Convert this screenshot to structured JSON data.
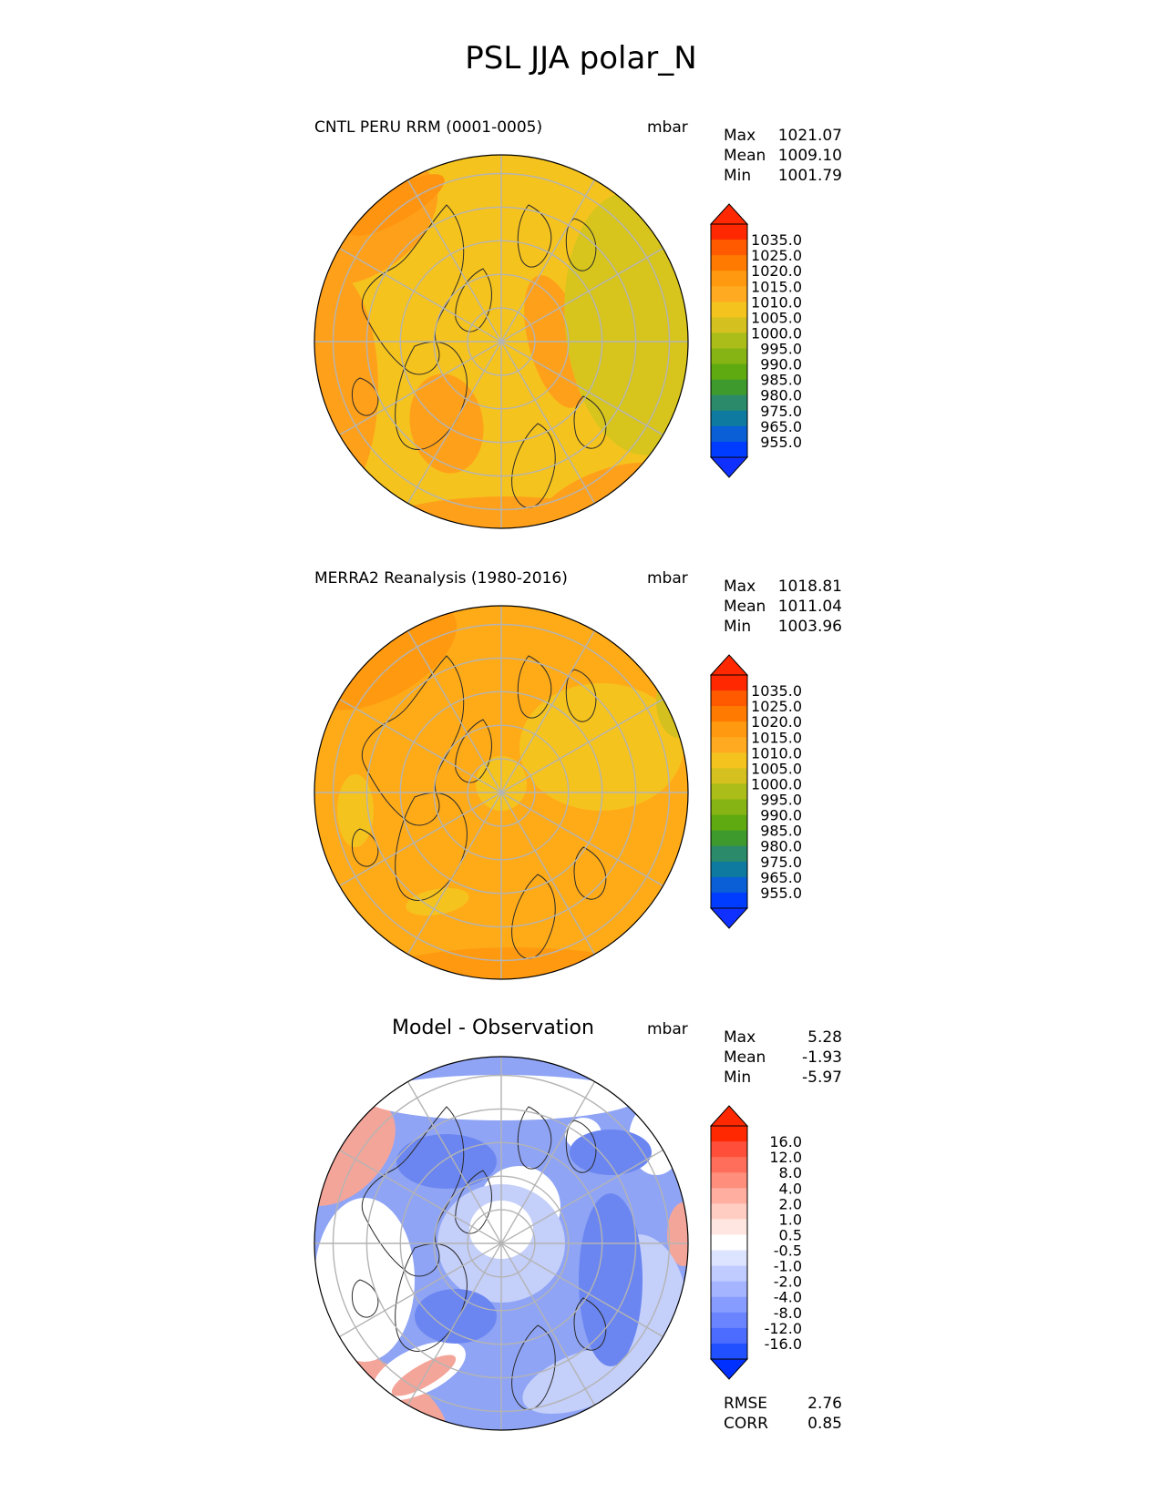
{
  "title": "PSL JJA polar_N",
  "panels": [
    {
      "id": "test",
      "title": "CNTL PERU RRM (0001-0005)",
      "units": "mbar",
      "stats": [
        {
          "label": "Max",
          "value": "1021.07"
        },
        {
          "label": "Mean",
          "value": "1009.10"
        },
        {
          "label": "Min",
          "value": "1001.79"
        }
      ],
      "colorbar": {
        "ticks": [
          "1035.0",
          "1025.0",
          "1020.0",
          "1015.0",
          "1010.0",
          "1005.0",
          "1000.0",
          "995.0",
          "990.0",
          "985.0",
          "980.0",
          "975.0",
          "965.0",
          "955.0"
        ],
        "colors": [
          "#ff2800",
          "#ff5a00",
          "#ff7a00",
          "#ff9a10",
          "#ffaa20",
          "#f5c31e",
          "#d4c01e",
          "#aabd18",
          "#86b414",
          "#5eaa10",
          "#3f9a2e",
          "#2a8a6a",
          "#0e7aa0",
          "#0a5fd6",
          "#003cff"
        ],
        "top_color": "#ff2800",
        "bottom_color": "#1030ff"
      },
      "map": {
        "base": "#f5c31e",
        "edge": "#ffa01a",
        "accent": "#d7c51e"
      }
    },
    {
      "id": "ref",
      "title": "MERRA2 Reanalysis (1980-2016)",
      "units": "mbar",
      "stats": [
        {
          "label": "Max",
          "value": "1018.81"
        },
        {
          "label": "Mean",
          "value": "1011.04"
        },
        {
          "label": "Min",
          "value": "1003.96"
        }
      ],
      "colorbar": {
        "ticks": [
          "1035.0",
          "1025.0",
          "1020.0",
          "1015.0",
          "1010.0",
          "1005.0",
          "1000.0",
          "995.0",
          "990.0",
          "985.0",
          "980.0",
          "975.0",
          "965.0",
          "955.0"
        ],
        "colors": [
          "#ff2800",
          "#ff5a00",
          "#ff7a00",
          "#ff9a10",
          "#ffaa20",
          "#f5c31e",
          "#d4c01e",
          "#aabd18",
          "#86b414",
          "#5eaa10",
          "#3f9a2e",
          "#2a8a6a",
          "#0e7aa0",
          "#0a5fd6",
          "#003cff"
        ],
        "top_color": "#ff2800",
        "bottom_color": "#1030ff"
      },
      "map": {
        "base": "#ffab18",
        "edge": "#ff9a10",
        "accent": "#f5c31e"
      }
    },
    {
      "id": "diff",
      "title": "Model - Observation",
      "units": "mbar",
      "stats": [
        {
          "label": "Max",
          "value": "5.28"
        },
        {
          "label": "Mean",
          "value": "-1.93"
        },
        {
          "label": "Min",
          "value": "-5.97"
        }
      ],
      "colorbar": {
        "ticks": [
          "16.0",
          "12.0",
          "8.0",
          "4.0",
          "2.0",
          "1.0",
          "0.5",
          "-0.5",
          "-1.0",
          "-2.0",
          "-4.0",
          "-8.0",
          "-12.0",
          "-16.0"
        ],
        "colors": [
          "#ff2800",
          "#ff4f3a",
          "#ff6e5a",
          "#ff8e7c",
          "#ffaea0",
          "#ffcdc2",
          "#ffe6e0",
          "#ffffff",
          "#dde4ff",
          "#c0ccff",
          "#a4b4ff",
          "#879cff",
          "#6a84ff",
          "#4c6cff",
          "#2050ff"
        ],
        "top_color": "#ff2800",
        "bottom_color": "#0030ff"
      },
      "map": {
        "base": "#8fa4f5",
        "edge": "#f4a59a",
        "accent": "#ffffff"
      },
      "metrics": [
        {
          "label": "RMSE",
          "value": "2.76"
        },
        {
          "label": "CORR",
          "value": "0.85"
        }
      ]
    }
  ],
  "chart_data": {
    "type": "heatmap",
    "title": "PSL JJA polar_N",
    "projection": "north polar stereographic",
    "variable": "PSL",
    "season": "JJA",
    "units": "mbar",
    "maps": [
      {
        "name": "CNTL PERU RRM (0001-0005)",
        "max": 1021.07,
        "mean": 1009.1,
        "min": 1001.79,
        "levels": [
          955,
          965,
          975,
          980,
          985,
          990,
          995,
          1000,
          1005,
          1010,
          1015,
          1020,
          1025,
          1035
        ]
      },
      {
        "name": "MERRA2 Reanalysis (1980-2016)",
        "max": 1018.81,
        "mean": 1011.04,
        "min": 1003.96,
        "levels": [
          955,
          965,
          975,
          980,
          985,
          990,
          995,
          1000,
          1005,
          1010,
          1015,
          1020,
          1025,
          1035
        ]
      },
      {
        "name": "Model - Observation",
        "max": 5.28,
        "mean": -1.93,
        "min": -5.97,
        "rmse": 2.76,
        "corr": 0.85,
        "levels": [
          -16,
          -12,
          -8,
          -4,
          -2,
          -1,
          -0.5,
          0.5,
          1,
          2,
          4,
          8,
          12,
          16
        ]
      }
    ]
  }
}
